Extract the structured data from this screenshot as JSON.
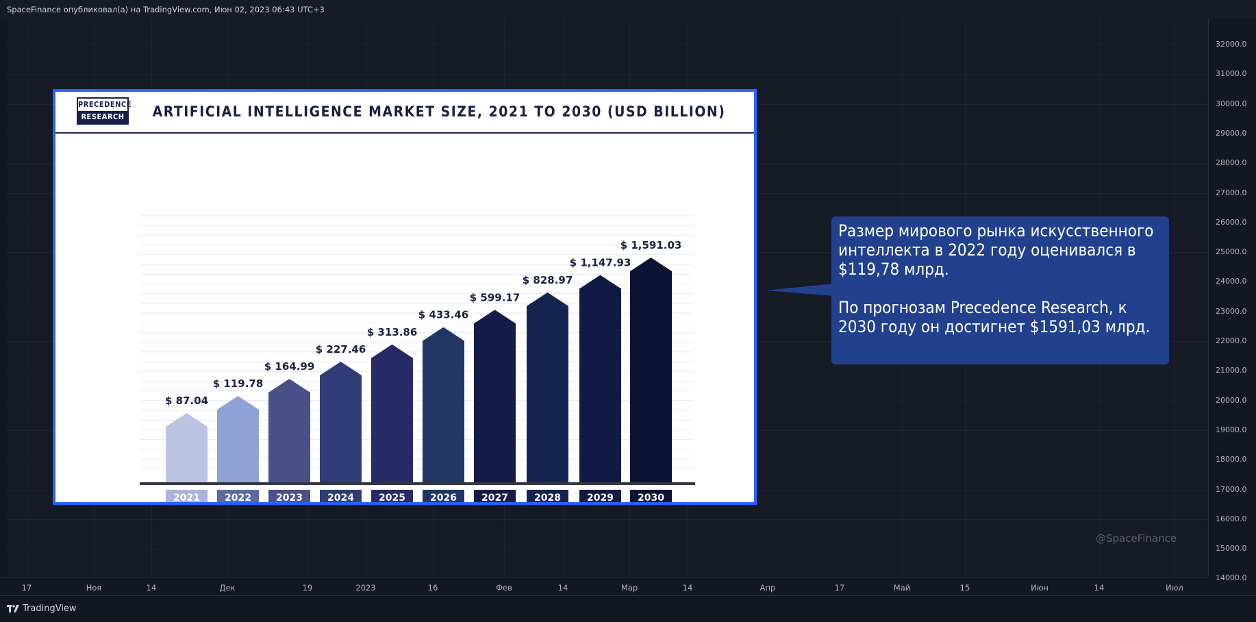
{
  "header": {
    "publisher_line": "SpaceFinance опубликовал(а) на TradingView.com, Июн 02, 2023 06:43 UTC+3"
  },
  "price_scale": {
    "labels": [
      "32000.0",
      "31000.0",
      "30000.0",
      "29000.0",
      "28000.0",
      "27000.0",
      "26000.0",
      "25000.0",
      "24000.0",
      "23000.0",
      "22000.0",
      "21000.0",
      "20000.0",
      "19000.0",
      "18000.0",
      "17000.0",
      "16000.0",
      "15000.0",
      "14000.0"
    ]
  },
  "time_axis": {
    "labels": [
      "17",
      "Ноя",
      "14",
      "Дек",
      "19",
      "2023",
      "16",
      "Фев",
      "14",
      "Мар",
      "14",
      "Апр",
      "17",
      "Май",
      "15",
      "Июн",
      "14",
      "Июл"
    ]
  },
  "infographic": {
    "logo_line1": "PRECEDENCE",
    "logo_line2": "RESEARCH",
    "title": "ARTIFICIAL INTELLIGENCE MARKET SIZE, 2021 TO 2030 (USD BILLION)"
  },
  "chart_data": {
    "type": "bar",
    "title": "ARTIFICIAL INTELLIGENCE MARKET SIZE, 2021 TO 2030 (USD BILLION)",
    "categories": [
      "2021",
      "2022",
      "2023",
      "2024",
      "2025",
      "2026",
      "2027",
      "2028",
      "2029",
      "2030"
    ],
    "values": [
      87.04,
      119.78,
      164.99,
      227.46,
      313.86,
      433.46,
      599.17,
      828.97,
      1147.93,
      1591.03
    ],
    "value_labels": [
      "$ 87.04",
      "$ 119.78",
      "$ 164.99",
      "$ 227.46",
      "$ 313.86",
      "$ 433.46",
      "$ 599.17",
      "$ 828.97",
      "$ 1,147.93",
      "$ 1,591.03"
    ],
    "colors": [
      "#bcc3e3",
      "#8fa2d6",
      "#4a5189",
      "#2e3d76",
      "#262b66",
      "#203766",
      "#141d45",
      "#142451",
      "#101a42",
      "#0b1435"
    ],
    "label_colors": [
      "#aab3db",
      "#5d6aa0",
      "#4a5189",
      "#2e3d76",
      "#262b66",
      "#203766",
      "#141d45",
      "#142451",
      "#101a42",
      "#0b1435"
    ],
    "grid": true
  },
  "annotation": {
    "paragraph1": "Размер мирового рынка искусственного интеллекта в 2022 году оценивался в $119,78 млрд.",
    "paragraph2": "По прогнозам Precedence Research, к 2030 году он достигнет $1591,03 млрд."
  },
  "watermark": "@SpaceFinance",
  "footer": {
    "brand": "TradingView"
  },
  "colors": {
    "background": "#131722",
    "accent": "#2962ff",
    "callout": "#21418f"
  }
}
